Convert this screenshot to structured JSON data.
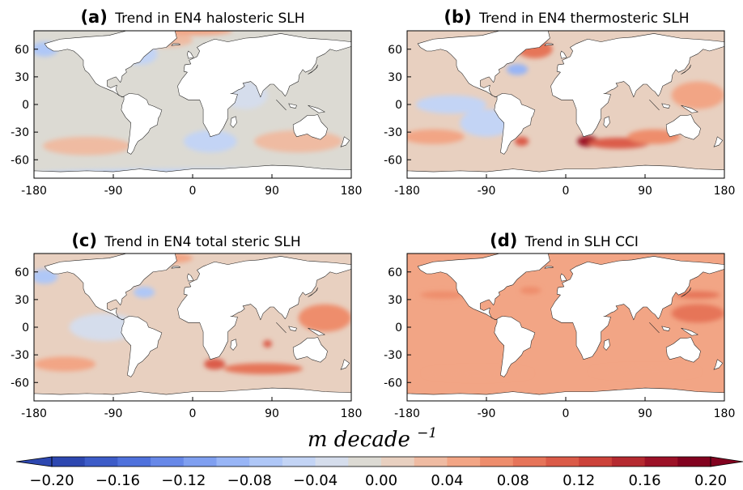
{
  "figure": {
    "colorbar": {
      "unit_text": "m decade",
      "unit_exponent": "−1",
      "ticks": [
        "−0.20",
        "−0.16",
        "−0.12",
        "−0.08",
        "−0.04",
        "0.00",
        "0.04",
        "0.08",
        "0.12",
        "0.16",
        "0.20"
      ],
      "vmin": -0.2,
      "vmax": 0.2,
      "levels": 20,
      "colors": [
        "#2d47b0",
        "#3d5cc8",
        "#4f71dc",
        "#6788e8",
        "#7f9ff0",
        "#98b5f6",
        "#afc7f7",
        "#c3d4f5",
        "#d5ddec",
        "#dcdad3",
        "#e8d0c0",
        "#efbba2",
        "#f2a585",
        "#ee8d6c",
        "#e67459",
        "#db5b48",
        "#cc423a",
        "#b52a30",
        "#9c1227",
        "#82021f"
      ],
      "extend": "both"
    }
  },
  "chart_data": [
    {
      "type": "heatmap",
      "panel": "(a)",
      "title": "Trend in EN4 halosteric SLH",
      "xticks": [
        "-180",
        "-90",
        "0",
        "90",
        "180"
      ],
      "yticks": [
        "60",
        "30",
        "0",
        "-30",
        "-60"
      ],
      "xlim": [
        -180,
        180
      ],
      "ylim": [
        -80,
        80
      ],
      "background_value": -0.01,
      "features": [
        {
          "lon": -168,
          "lat": 60,
          "value": -0.08,
          "rlon": 15,
          "rlat": 8
        },
        {
          "lon": -60,
          "lat": 55,
          "value": -0.04,
          "rlon": 20,
          "rlat": 12
        },
        {
          "lon": -30,
          "lat": 70,
          "value": 0.03,
          "rlon": 30,
          "rlat": 8
        },
        {
          "lon": 5,
          "lat": 80,
          "value": 0.04,
          "rlon": 40,
          "rlat": 5
        },
        {
          "lon": 20,
          "lat": -40,
          "value": -0.05,
          "rlon": 30,
          "rlat": 12
        },
        {
          "lon": -120,
          "lat": -45,
          "value": 0.03,
          "rlon": 50,
          "rlat": 10
        },
        {
          "lon": 120,
          "lat": -40,
          "value": 0.03,
          "rlon": 50,
          "rlat": 12
        },
        {
          "lon": 60,
          "lat": 10,
          "value": -0.03,
          "rlon": 25,
          "rlat": 15
        },
        {
          "lon": 0,
          "lat": -75,
          "value": -0.04,
          "rlon": 180,
          "rlat": 5
        }
      ]
    },
    {
      "type": "heatmap",
      "panel": "(b)",
      "title": "Trend in EN4 thermosteric SLH",
      "xticks": [
        "-180",
        "-90",
        "0",
        "90",
        "180"
      ],
      "yticks": [
        "60",
        "30",
        "0",
        "-30",
        "-60"
      ],
      "xlim": [
        -180,
        180
      ],
      "ylim": [
        -80,
        80
      ],
      "background_value": 0.0,
      "features": [
        {
          "lon": -35,
          "lat": 60,
          "value": 0.08,
          "rlon": 20,
          "rlat": 10
        },
        {
          "lon": -55,
          "lat": 38,
          "value": -0.1,
          "rlon": 12,
          "rlat": 6
        },
        {
          "lon": 25,
          "lat": -40,
          "value": 0.16,
          "rlon": 12,
          "rlat": 6
        },
        {
          "lon": 60,
          "lat": -42,
          "value": 0.1,
          "rlon": 35,
          "rlat": 6
        },
        {
          "lon": -50,
          "lat": -40,
          "value": 0.12,
          "rlon": 8,
          "rlat": 5
        },
        {
          "lon": 150,
          "lat": 10,
          "value": 0.05,
          "rlon": 30,
          "rlat": 15
        },
        {
          "lon": -130,
          "lat": 0,
          "value": -0.04,
          "rlon": 40,
          "rlat": 10
        },
        {
          "lon": -150,
          "lat": -35,
          "value": 0.05,
          "rlon": 35,
          "rlat": 8
        },
        {
          "lon": 100,
          "lat": -35,
          "value": 0.06,
          "rlon": 30,
          "rlat": 8
        },
        {
          "lon": -90,
          "lat": -20,
          "value": -0.04,
          "rlon": 30,
          "rlat": 15
        }
      ]
    },
    {
      "type": "heatmap",
      "panel": "(c)",
      "title": "Trend in EN4 total steric SLH",
      "xticks": [
        "-180",
        "-90",
        "0",
        "90",
        "180"
      ],
      "yticks": [
        "60",
        "30",
        "0",
        "-30",
        "-60"
      ],
      "xlim": [
        -180,
        180
      ],
      "ylim": [
        -80,
        80
      ],
      "background_value": 0.0,
      "features": [
        {
          "lon": -168,
          "lat": 55,
          "value": -0.08,
          "rlon": 15,
          "rlat": 8
        },
        {
          "lon": -55,
          "lat": 38,
          "value": -0.08,
          "rlon": 12,
          "rlat": 6
        },
        {
          "lon": 25,
          "lat": -40,
          "value": 0.1,
          "rlon": 12,
          "rlat": 6
        },
        {
          "lon": 80,
          "lat": -45,
          "value": 0.08,
          "rlon": 45,
          "rlat": 6
        },
        {
          "lon": -145,
          "lat": -40,
          "value": 0.05,
          "rlon": 35,
          "rlat": 8
        },
        {
          "lon": 150,
          "lat": 10,
          "value": 0.07,
          "rlon": 30,
          "rlat": 15
        },
        {
          "lon": -100,
          "lat": 0,
          "value": -0.03,
          "rlon": 40,
          "rlat": 15
        },
        {
          "lon": 85,
          "lat": -18,
          "value": 0.1,
          "rlon": 5,
          "rlat": 4
        },
        {
          "lon": -30,
          "lat": 75,
          "value": 0.04,
          "rlon": 30,
          "rlat": 6
        }
      ]
    },
    {
      "type": "heatmap",
      "panel": "(d)",
      "title": "Trend in SLH CCI",
      "xticks": [
        "-180",
        "-90",
        "0",
        "90",
        "180"
      ],
      "yticks": [
        "60",
        "30",
        "0",
        "-30",
        "-60"
      ],
      "xlim": [
        -180,
        180
      ],
      "ylim": [
        -80,
        80
      ],
      "background_value": 0.04,
      "features": [
        {
          "lon": 150,
          "lat": 15,
          "value": 0.08,
          "rlon": 30,
          "rlat": 10
        },
        {
          "lon": 150,
          "lat": 35,
          "value": 0.08,
          "rlon": 25,
          "rlat": 4
        },
        {
          "lon": -140,
          "lat": 35,
          "value": 0.06,
          "rlon": 25,
          "rlat": 4
        },
        {
          "lon": 90,
          "lat": -48,
          "value": 0.05,
          "rlon": 60,
          "rlat": 5
        },
        {
          "lon": -100,
          "lat": -50,
          "value": 0.05,
          "rlon": 60,
          "rlat": 5
        },
        {
          "lon": -40,
          "lat": 40,
          "value": 0.06,
          "rlon": 12,
          "rlat": 4
        }
      ]
    }
  ]
}
